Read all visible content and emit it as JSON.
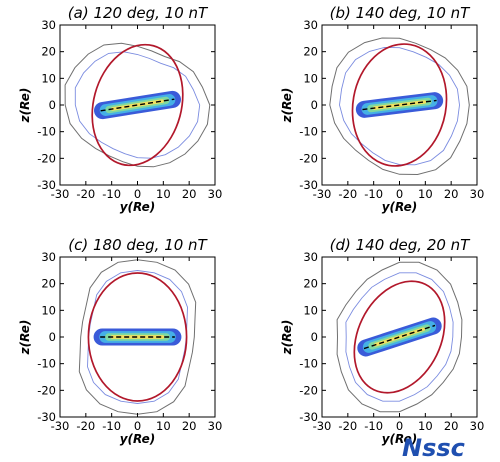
{
  "logo": {
    "text": "Nssc",
    "color": "#1f4fb0"
  },
  "colors": {
    "open_closed_boundary": "#b2182b",
    "outer_contour": "#707070",
    "inner_contour": "#5a6fd8",
    "current_sheet": [
      "#3a5bd9",
      "#45b0e6",
      "#7fd8a0",
      "#f0e060"
    ],
    "neutral_line": "#000000"
  },
  "chart_data": [
    {
      "type": "contour",
      "title": "(a) 120 deg, 10 nT",
      "clock_angle_deg": 120,
      "imf_nT": 10,
      "xlabel": "y(Re)",
      "ylabel": "z(Re)",
      "xlim": [
        -30,
        30
      ],
      "ylim": [
        -30,
        30
      ],
      "xticks": [
        -30,
        -20,
        -10,
        0,
        10,
        20,
        30
      ],
      "yticks": [
        -30,
        -20,
        -10,
        0,
        10,
        20,
        30
      ],
      "sheet_tilt_deg": 9,
      "boundary_ellipse": {
        "a": 17,
        "b": 23,
        "rotation_deg": 15
      },
      "outer_contour_radii": [
        28,
        26,
        25,
        23,
        21,
        21,
        22,
        24,
        26,
        27,
        28,
        29,
        28,
        27,
        25,
        23,
        22,
        22,
        23,
        24,
        25,
        26,
        27,
        28
      ]
    },
    {
      "type": "contour",
      "title": "(b) 140 deg, 10 nT",
      "clock_angle_deg": 140,
      "imf_nT": 10,
      "xlabel": "y(Re)",
      "ylabel": "z(Re)",
      "xlim": [
        -30,
        30
      ],
      "ylim": [
        -30,
        30
      ],
      "xticks": [
        -30,
        -20,
        -10,
        0,
        10,
        20,
        30
      ],
      "yticks": [
        -30,
        -20,
        -10,
        0,
        10,
        20,
        30
      ],
      "sheet_tilt_deg": 7,
      "boundary_ellipse": {
        "a": 18,
        "b": 23,
        "rotation_deg": 10
      },
      "outer_contour_radii": [
        27,
        27,
        26,
        25,
        24,
        24,
        25,
        26,
        27,
        28,
        28,
        27,
        27,
        26,
        25,
        24,
        24,
        25,
        26,
        27,
        28,
        28,
        27,
        27
      ]
    },
    {
      "type": "contour",
      "title": "(c) 180 deg, 10 nT",
      "clock_angle_deg": 180,
      "imf_nT": 10,
      "xlabel": "y(Re)",
      "ylabel": "z(Re)",
      "xlim": [
        -30,
        30
      ],
      "ylim": [
        -30,
        30
      ],
      "xticks": [
        -30,
        -20,
        -10,
        0,
        10,
        20,
        30
      ],
      "yticks": [
        -30,
        -20,
        -10,
        0,
        10,
        20,
        30
      ],
      "sheet_tilt_deg": 0,
      "boundary_ellipse": {
        "a": 19,
        "b": 24,
        "rotation_deg": 0
      },
      "outer_contour_radii": [
        22,
        23,
        26,
        28,
        29,
        29,
        29,
        29,
        28,
        26,
        23,
        22,
        22,
        23,
        26,
        28,
        29,
        29,
        29,
        29,
        28,
        26,
        23,
        22
      ]
    },
    {
      "type": "contour",
      "title": "(d) 140 deg, 20 nT",
      "clock_angle_deg": 140,
      "imf_nT": 20,
      "xlabel": "y(Re)",
      "ylabel": "z(Re)",
      "xlim": [
        -30,
        30
      ],
      "ylim": [
        -30,
        30
      ],
      "xticks": [
        -30,
        -20,
        -10,
        0,
        10,
        20,
        30
      ],
      "yticks": [
        -30,
        -20,
        -10,
        0,
        10,
        20,
        30
      ],
      "sheet_tilt_deg": 18,
      "boundary_ellipse": {
        "a": 16,
        "b": 22,
        "rotation_deg": 26
      },
      "outer_contour_radii": [
        24,
        25,
        26,
        28,
        29,
        29,
        28,
        26,
        25,
        24,
        24,
        25,
        24,
        25,
        26,
        28,
        29,
        29,
        28,
        26,
        25,
        24,
        24,
        24
      ]
    }
  ]
}
